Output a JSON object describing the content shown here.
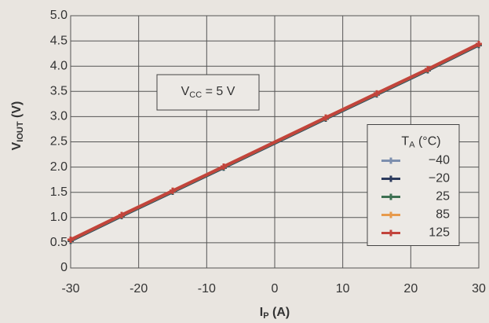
{
  "chart_data": {
    "type": "line",
    "x_label": [
      "I",
      "P",
      " (A)"
    ],
    "y_label": [
      "V",
      "IOUT",
      " (V)"
    ],
    "annotation": [
      "V",
      "CC",
      " = 5 V"
    ],
    "legend_title": [
      "T",
      "A",
      " (°C)"
    ],
    "legend": "right",
    "grid": true,
    "xlim": [
      -30,
      30
    ],
    "xticks": [
      -30,
      -20,
      -10,
      0,
      10,
      20,
      30
    ],
    "ylim": [
      0,
      5
    ],
    "yticks": [
      0,
      0.5,
      {
        "value": 1,
        "label": "1.0"
      },
      1.5,
      {
        "value": 2,
        "label": "2.0"
      },
      2.5,
      {
        "value": 3,
        "label": "3.0"
      },
      3.5,
      {
        "value": 4,
        "label": "4.0"
      },
      4.5,
      {
        "value": 5,
        "label": "5.0"
      }
    ],
    "x": [
      -30,
      -22.5,
      -15,
      -7.5,
      7.5,
      15,
      22.5,
      30
    ],
    "series": [
      {
        "name": "−40",
        "color": "#7d8fae",
        "values": [
          0.54,
          1.03,
          1.51,
          1.99,
          2.96,
          3.44,
          3.92,
          4.42
        ]
      },
      {
        "name": "−20",
        "color": "#2c3b5e",
        "values": [
          0.54,
          1.03,
          1.51,
          1.99,
          2.96,
          3.44,
          3.92,
          4.42
        ]
      },
      {
        "name": "25",
        "color": "#3d7052",
        "values": [
          0.55,
          1.04,
          1.52,
          2.0,
          2.97,
          3.45,
          3.93,
          4.43
        ]
      },
      {
        "name": "85",
        "color": "#e79a4c",
        "values": [
          0.56,
          1.05,
          1.53,
          2.01,
          2.98,
          3.46,
          3.94,
          4.44
        ]
      },
      {
        "name": "125",
        "color": "#c2443c",
        "values": [
          0.56,
          1.05,
          1.53,
          2.01,
          2.98,
          3.46,
          3.94,
          4.44
        ]
      }
    ]
  }
}
